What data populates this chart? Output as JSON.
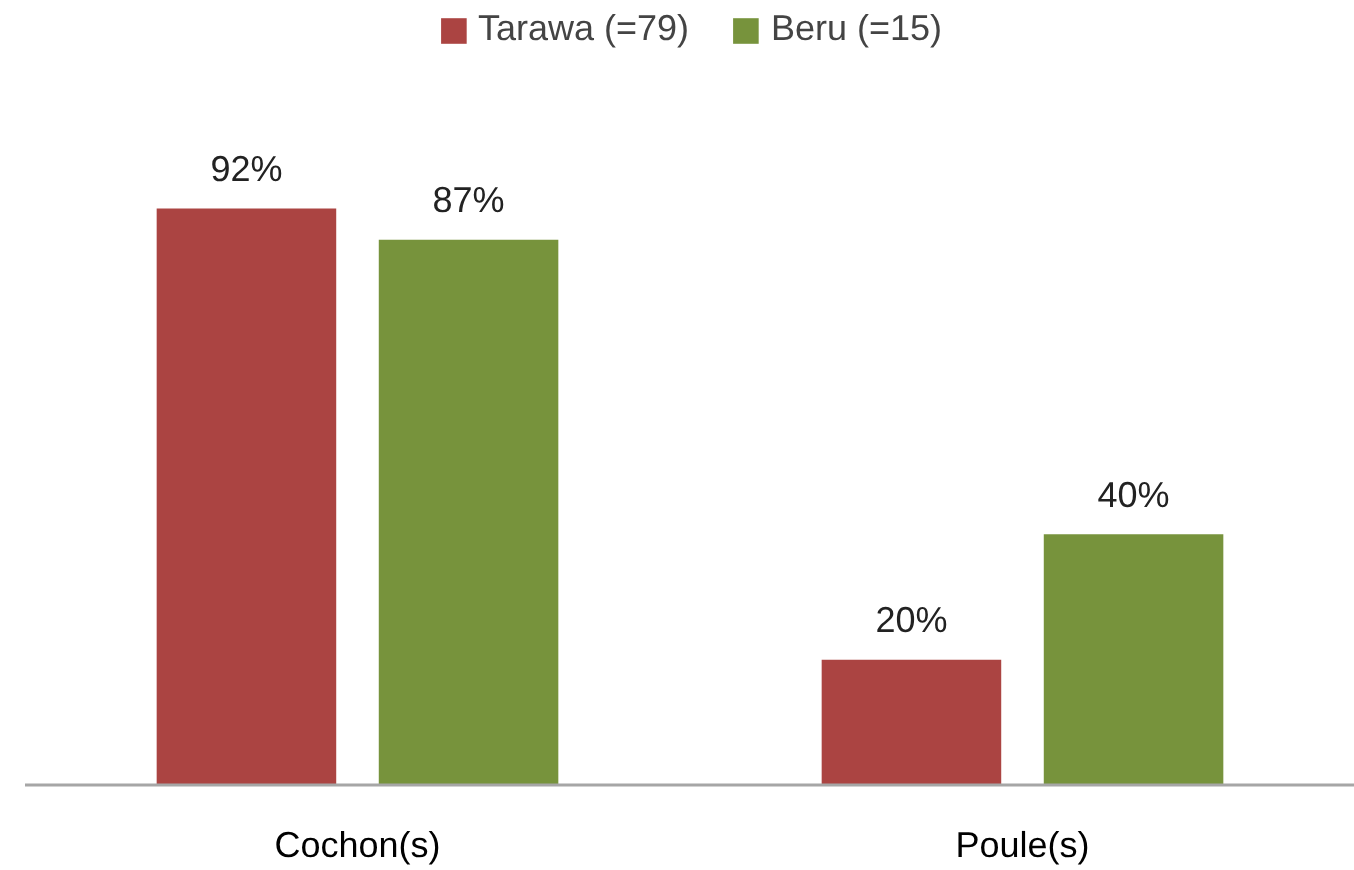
{
  "chart_data": {
    "type": "bar",
    "categories": [
      "Cochon(s)",
      "Poule(s)"
    ],
    "series": [
      {
        "name": "Tarawa (=79)",
        "color": "#ab4442",
        "values": [
          92,
          20
        ],
        "value_labels": [
          "92%",
          "20%"
        ]
      },
      {
        "name": "Beru (=15)",
        "color": "#77933c",
        "values": [
          87,
          40
        ],
        "value_labels": [
          "87%",
          "40%"
        ]
      }
    ],
    "legend": "top"
  }
}
